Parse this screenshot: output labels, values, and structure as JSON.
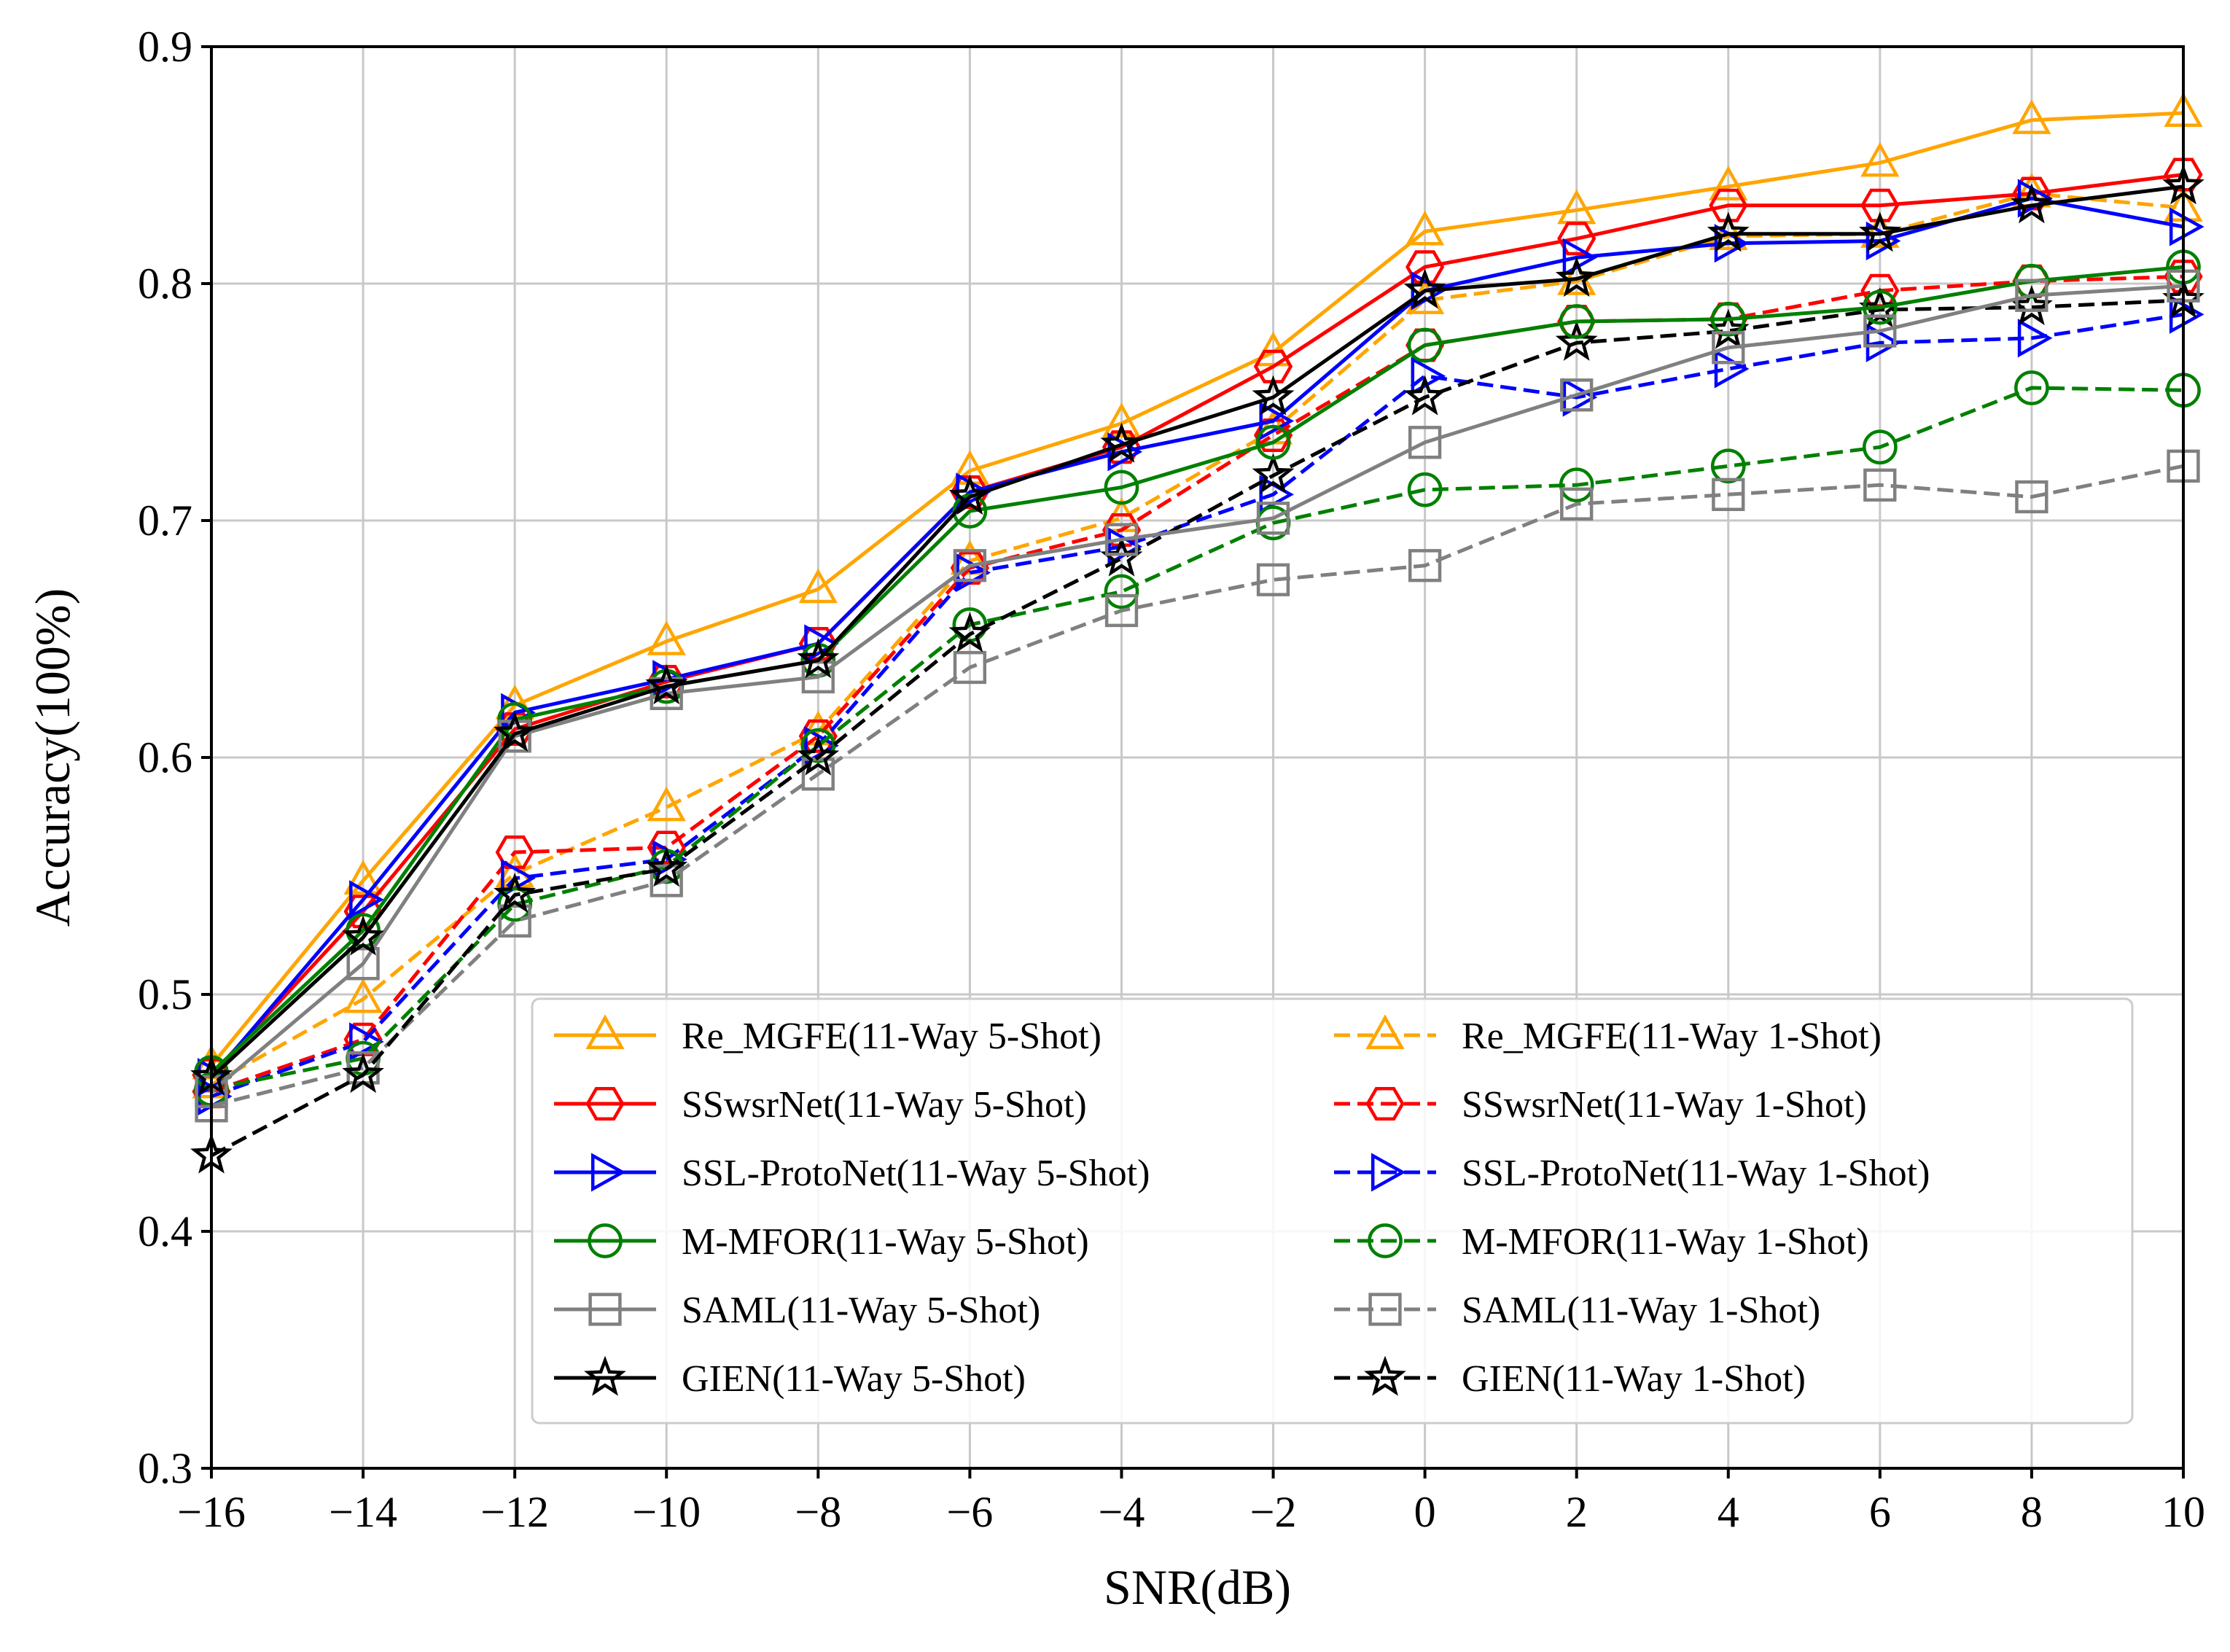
{
  "chart_data": {
    "type": "line",
    "title": "",
    "xlabel": "SNR(dB)",
    "ylabel": "Accuracy(100%)",
    "xlim": [
      -16,
      10
    ],
    "ylim": [
      0.3,
      0.9
    ],
    "grid": true,
    "legend_position": "lower-right",
    "legend_columns": 2,
    "x": [
      -16,
      -14,
      -12,
      -10,
      -8,
      -6,
      -4,
      -2,
      0,
      2,
      4,
      6,
      8,
      10
    ],
    "x_tick_labels": [
      "−16",
      "−14",
      "−12",
      "−10",
      "−8",
      "−6",
      "−4",
      "−2",
      "0",
      "2",
      "4",
      "6",
      "8",
      "10"
    ],
    "y_ticks": [
      0.3,
      0.4,
      0.5,
      0.6,
      0.7,
      0.8,
      0.9
    ],
    "y_tick_labels": [
      "0.3",
      "0.4",
      "0.5",
      "0.6",
      "0.7",
      "0.8",
      "0.9"
    ],
    "series": [
      {
        "name": "Re_MGFE(11-Way 5-Shot)",
        "color": "#FFA500",
        "dash": "solid",
        "marker": "triangle-up",
        "values": [
          0.47,
          0.548,
          0.622,
          0.649,
          0.671,
          0.721,
          0.741,
          0.771,
          0.822,
          0.831,
          0.841,
          0.851,
          0.869,
          0.872
        ]
      },
      {
        "name": "SSwsrNet(11-Way 5-Shot)",
        "color": "#FF0000",
        "dash": "solid",
        "marker": "hexagon",
        "values": [
          0.466,
          0.535,
          0.612,
          0.632,
          0.648,
          0.712,
          0.731,
          0.765,
          0.807,
          0.819,
          0.833,
          0.833,
          0.838,
          0.846
        ]
      },
      {
        "name": "SSL-ProtoNet(11-Way 5-Shot)",
        "color": "#0000FF",
        "dash": "solid",
        "marker": "triangle-right",
        "values": [
          0.465,
          0.54,
          0.619,
          0.633,
          0.648,
          0.712,
          0.729,
          0.742,
          0.797,
          0.811,
          0.817,
          0.818,
          0.836,
          0.824
        ]
      },
      {
        "name": "M-MFOR(11-Way 5-Shot)",
        "color": "#008000",
        "dash": "solid",
        "marker": "circle",
        "values": [
          0.467,
          0.527,
          0.616,
          0.63,
          0.641,
          0.704,
          0.714,
          0.733,
          0.774,
          0.784,
          0.785,
          0.79,
          0.801,
          0.807
        ]
      },
      {
        "name": "SAML(11-Way 5-Shot)",
        "color": "#808080",
        "dash": "solid",
        "marker": "square",
        "values": [
          0.459,
          0.513,
          0.609,
          0.627,
          0.634,
          0.681,
          0.692,
          0.701,
          0.733,
          0.753,
          0.773,
          0.78,
          0.795,
          0.799
        ]
      },
      {
        "name": "GIEN(11-Way 5-Shot)",
        "color": "#000000",
        "dash": "solid",
        "marker": "star",
        "values": [
          0.465,
          0.524,
          0.61,
          0.63,
          0.641,
          0.71,
          0.732,
          0.752,
          0.797,
          0.802,
          0.821,
          0.821,
          0.833,
          0.841
        ]
      },
      {
        "name": "Re_MGFE(11-Way 1-Shot)",
        "color": "#FFA500",
        "dash": "dashed",
        "marker": "triangle-up",
        "values": [
          0.462,
          0.498,
          0.551,
          0.579,
          0.611,
          0.683,
          0.701,
          0.738,
          0.793,
          0.801,
          0.82,
          0.821,
          0.838,
          0.832
        ]
      },
      {
        "name": "SSwsrNet(11-Way 1-Shot)",
        "color": "#FF0000",
        "dash": "dashed",
        "marker": "hexagon",
        "values": [
          0.459,
          0.481,
          0.56,
          0.562,
          0.609,
          0.68,
          0.696,
          0.736,
          0.774,
          0.784,
          0.785,
          0.797,
          0.801,
          0.803
        ]
      },
      {
        "name": "SSL-ProtoNet(11-Way 1-Shot)",
        "color": "#0000FF",
        "dash": "dashed",
        "marker": "triangle-right",
        "values": [
          0.457,
          0.48,
          0.549,
          0.557,
          0.605,
          0.678,
          0.689,
          0.711,
          0.761,
          0.752,
          0.764,
          0.775,
          0.777,
          0.787
        ]
      },
      {
        "name": "M-MFOR(11-Way 1-Shot)",
        "color": "#008000",
        "dash": "dashed",
        "marker": "circle",
        "values": [
          0.46,
          0.473,
          0.538,
          0.554,
          0.605,
          0.656,
          0.67,
          0.699,
          0.713,
          0.715,
          0.723,
          0.731,
          0.756,
          0.755
        ]
      },
      {
        "name": "SAML(11-Way 1-Shot)",
        "color": "#808080",
        "dash": "dashed",
        "marker": "square",
        "values": [
          0.453,
          0.469,
          0.531,
          0.548,
          0.593,
          0.638,
          0.662,
          0.675,
          0.681,
          0.707,
          0.711,
          0.715,
          0.71,
          0.723
        ]
      },
      {
        "name": "GIEN(11-Way 1-Shot)",
        "color": "#000000",
        "dash": "dashed",
        "marker": "star",
        "values": [
          0.432,
          0.466,
          0.542,
          0.553,
          0.6,
          0.652,
          0.684,
          0.719,
          0.752,
          0.775,
          0.78,
          0.789,
          0.79,
          0.793
        ]
      }
    ]
  }
}
